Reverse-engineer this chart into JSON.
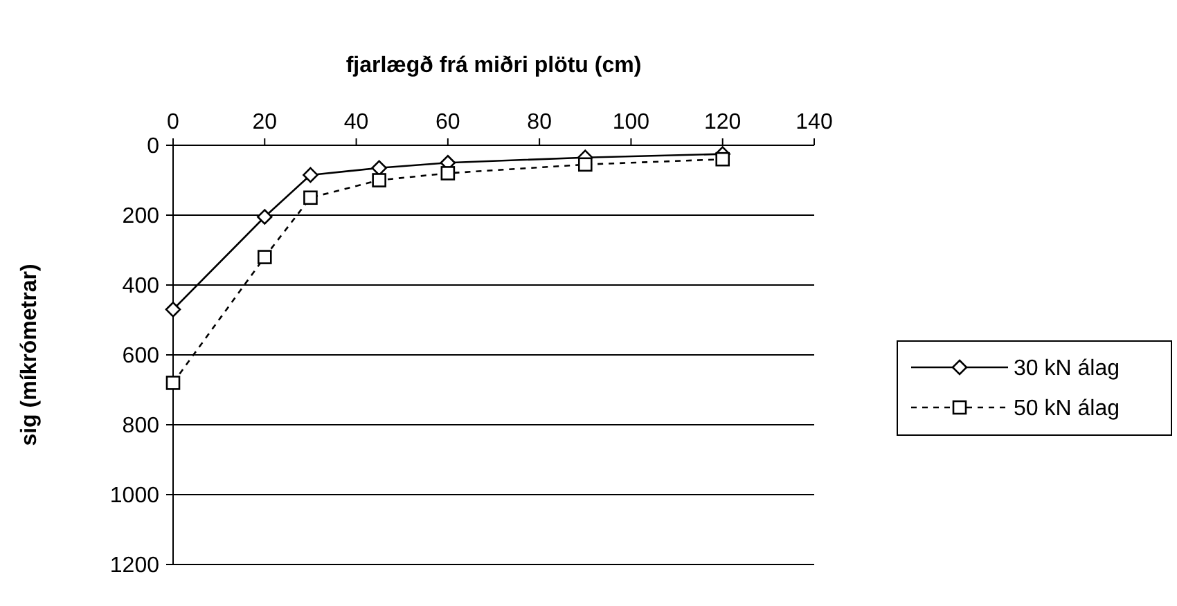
{
  "chart_data": {
    "type": "line",
    "xlabel": "fjarlægð frá miðri plötu (cm)",
    "ylabel": "sig (míkrómetrar)",
    "x": [
      0,
      20,
      30,
      45,
      60,
      90,
      120
    ],
    "series": [
      {
        "name": "30 kN álag",
        "color": "#000000",
        "values": [
          470,
          205,
          85,
          65,
          50,
          35,
          25
        ],
        "marker": "diamond",
        "line_style": "solid"
      },
      {
        "name": "50 kN álag",
        "color": "#000000",
        "values": [
          680,
          320,
          150,
          100,
          80,
          55,
          40
        ],
        "marker": "square",
        "line_style": "dashed"
      }
    ],
    "xlim": [
      0,
      140
    ],
    "xticks": [
      0,
      20,
      40,
      60,
      80,
      100,
      120,
      140
    ],
    "ylim": [
      1200,
      0
    ],
    "yticks": [
      0,
      200,
      400,
      600,
      800,
      1000,
      1200
    ],
    "grid": "y",
    "legend": "right"
  }
}
